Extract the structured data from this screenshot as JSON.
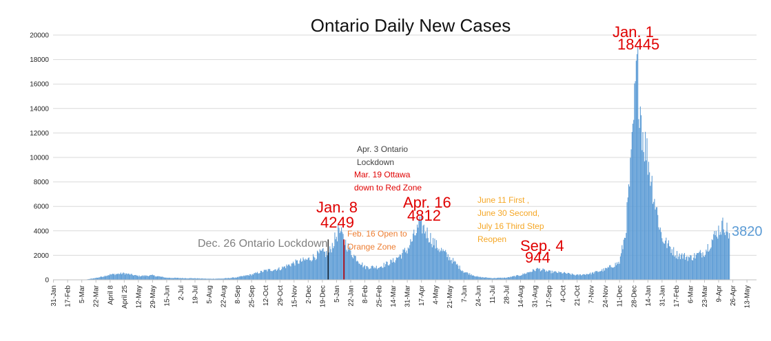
{
  "chart_data": {
    "type": "bar",
    "title": "Ontario Daily New Cases",
    "xlabel": "",
    "ylabel": "",
    "ylim": [
      0,
      20000
    ],
    "yticks": [
      "0",
      "2000",
      "4000",
      "6000",
      "8000",
      "10000",
      "12000",
      "14000",
      "16000",
      "18000",
      "20000"
    ],
    "grid": true,
    "legend": "none",
    "bar_color": "#5b9bd5",
    "x_start_date": "2020-01-31",
    "x_tick_labels": [
      "31-Jan",
      "17-Feb",
      "5-Mar",
      "22-Mar",
      "April 8",
      "April 25",
      "12-May",
      "29-May",
      "15-Jun",
      "2-Jul",
      "19-Jul",
      "5-Aug",
      "22-Aug",
      "8-Sep",
      "25-Sep",
      "12-Oct",
      "29-Oct",
      "15-Nov",
      "2-Dec",
      "19-Dec",
      "5-Jan",
      "22-Jan",
      "8-Feb",
      "25-Feb",
      "14-Mar",
      "31-Mar",
      "17-Apr",
      "4-May",
      "21-May",
      "7-Jun",
      "24-Jun",
      "11-Jul",
      "28-Jul",
      "14-Aug",
      "31-Aug",
      "17-Sep",
      "4-Oct",
      "21-Oct",
      "7-Nov",
      "24-Nov",
      "11-Dec",
      "28-Dec",
      "14-Jan",
      "31-Jan",
      "17-Feb",
      "6-Mar",
      "23-Mar",
      "9-Apr",
      "26-Apr",
      "13-May"
    ],
    "daily_profile": [
      [
        "2020-01-31",
        0
      ],
      [
        "2020-03-10",
        20
      ],
      [
        "2020-03-25",
        200
      ],
      [
        "2020-04-08",
        450
      ],
      [
        "2020-04-25",
        560
      ],
      [
        "2020-05-12",
        330
      ],
      [
        "2020-05-29",
        380
      ],
      [
        "2020-06-15",
        180
      ],
      [
        "2020-07-02",
        150
      ],
      [
        "2020-07-19",
        130
      ],
      [
        "2020-08-05",
        90
      ],
      [
        "2020-08-22",
        110
      ],
      [
        "2020-09-08",
        220
      ],
      [
        "2020-09-25",
        450
      ],
      [
        "2020-10-12",
        800
      ],
      [
        "2020-10-29",
        950
      ],
      [
        "2020-11-15",
        1450
      ],
      [
        "2020-12-02",
        1750
      ],
      [
        "2020-12-19",
        2350
      ],
      [
        "2020-12-26",
        2200
      ],
      [
        "2021-01-08",
        4249
      ],
      [
        "2021-01-22",
        2400
      ],
      [
        "2021-02-08",
        1100
      ],
      [
        "2021-02-25",
        1100
      ],
      [
        "2021-03-14",
        1600
      ],
      [
        "2021-03-31",
        2600
      ],
      [
        "2021-04-16",
        4812
      ],
      [
        "2021-05-04",
        3000
      ],
      [
        "2021-05-21",
        1900
      ],
      [
        "2021-06-07",
        700
      ],
      [
        "2021-06-24",
        250
      ],
      [
        "2021-07-11",
        150
      ],
      [
        "2021-07-28",
        180
      ],
      [
        "2021-08-14",
        400
      ],
      [
        "2021-09-04",
        944
      ],
      [
        "2021-09-17",
        700
      ],
      [
        "2021-10-04",
        600
      ],
      [
        "2021-10-21",
        400
      ],
      [
        "2021-11-07",
        550
      ],
      [
        "2021-11-24",
        900
      ],
      [
        "2021-12-11",
        1500
      ],
      [
        "2021-12-18",
        4000
      ],
      [
        "2021-12-25",
        10000
      ],
      [
        "2022-01-01",
        18445
      ],
      [
        "2022-01-08",
        12500
      ],
      [
        "2022-01-14",
        10500
      ],
      [
        "2022-01-22",
        7000
      ],
      [
        "2022-01-31",
        3600
      ],
      [
        "2022-02-17",
        2200
      ],
      [
        "2022-03-06",
        1900
      ],
      [
        "2022-03-23",
        2400
      ],
      [
        "2022-04-02",
        3500
      ],
      [
        "2022-04-09",
        4300
      ],
      [
        "2022-04-16",
        4800
      ],
      [
        "2022-04-22",
        3820
      ]
    ],
    "peaks": [
      {
        "date": "2021-01-08",
        "label": "Jan. 8",
        "value": 4249
      },
      {
        "date": "2021-04-16",
        "label": "Apr. 16",
        "value": 4812
      },
      {
        "date": "2021-09-04",
        "label": "Sep. 4",
        "value": 944
      },
      {
        "date": "2022-01-01",
        "label": "Jan. 1",
        "value": 18445
      }
    ],
    "last_value": 3820,
    "annotations": {
      "lockdown_dec": "Dec. 26 Ontario Lockdown",
      "apr3_line1": "Apr. 3 Ontario",
      "apr3_line2": "Lockdown",
      "mar19_line1": "Mar. 19 Ottawa",
      "mar19_line2": "down to Red Zone",
      "feb16_line1": "Feb. 16 Open to",
      "feb16_line2": "Orange Zone",
      "june_line1": "June 11 First ,",
      "june_line2": "June 30 Second,",
      "june_line3": "July 16 Third Step",
      "june_line4": "Reopen"
    },
    "colors": {
      "big_red": "#e00000",
      "lockdown_gray": "#7f7f7f",
      "apr3_dark": "#404040",
      "mar19_red": "#e00000",
      "feb16_orange": "#ed7d31",
      "june_gold": "#f5a623",
      "last_value_blue": "#5b9bd5",
      "marker_red": "#c00000",
      "marker_black": "#000000"
    }
  }
}
